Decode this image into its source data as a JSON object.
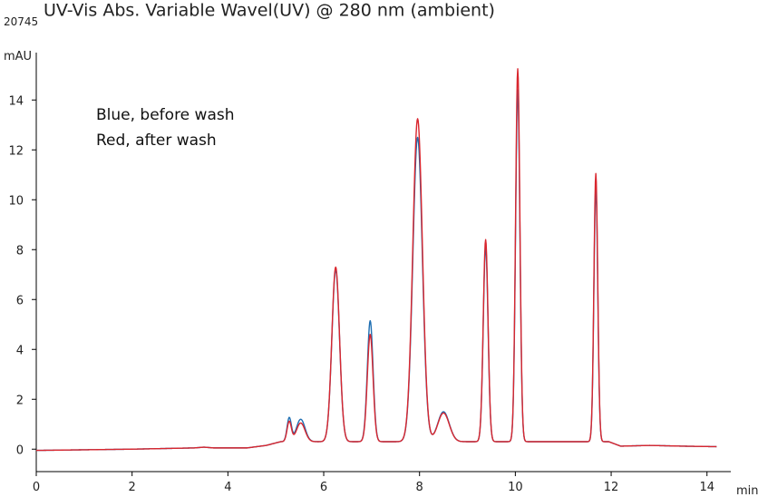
{
  "header": {
    "title": "UV-Vis Abs. Variable Wavel(UV) @ 280 nm (ambient)",
    "sample_id": "20745"
  },
  "chart_data": {
    "type": "line",
    "xlabel": "min",
    "ylabel": "mAU",
    "xlim": [
      0,
      14.8
    ],
    "ylim": [
      -0.9,
      15.9
    ],
    "xticks": [
      0,
      2,
      4,
      6,
      8,
      10,
      12,
      14
    ],
    "yticks": [
      0,
      2,
      4,
      6,
      8,
      10,
      12,
      14
    ],
    "grid": false,
    "legend": "none",
    "annotations": [
      "Blue, before wash",
      "Red, after wash"
    ],
    "baseline": [
      [
        0,
        -0.05
      ],
      [
        2,
        0.0
      ],
      [
        3.3,
        0.05
      ],
      [
        3.5,
        0.08
      ],
      [
        3.7,
        0.05
      ],
      [
        4.4,
        0.05
      ],
      [
        4.8,
        0.15
      ],
      [
        5.1,
        0.3
      ],
      [
        11.95,
        0.3
      ],
      [
        12.2,
        0.12
      ],
      [
        12.8,
        0.15
      ],
      [
        13.5,
        0.12
      ],
      [
        14.2,
        0.1
      ]
    ],
    "series": [
      {
        "color": "#1f6fb2",
        "peaks": [
          {
            "t": 5.28,
            "h": 0.95,
            "w": 0.045
          },
          {
            "t": 5.52,
            "h": 0.9,
            "w": 0.09
          },
          {
            "t": 6.25,
            "h": 6.9,
            "w": 0.08
          },
          {
            "t": 6.97,
            "h": 4.85,
            "w": 0.06
          },
          {
            "t": 7.96,
            "h": 12.2,
            "w": 0.1
          },
          {
            "t": 8.5,
            "h": 1.2,
            "w": 0.12
          },
          {
            "t": 9.38,
            "h": 7.8,
            "w": 0.05
          },
          {
            "t": 10.05,
            "h": 14.1,
            "w": 0.045
          },
          {
            "t": 11.68,
            "h": 10.2,
            "w": 0.04
          }
        ]
      },
      {
        "color": "#d9262e",
        "peaks": [
          {
            "t": 5.28,
            "h": 0.8,
            "w": 0.045
          },
          {
            "t": 5.52,
            "h": 0.75,
            "w": 0.09
          },
          {
            "t": 6.25,
            "h": 7.0,
            "w": 0.08
          },
          {
            "t": 6.97,
            "h": 4.3,
            "w": 0.06
          },
          {
            "t": 7.96,
            "h": 12.95,
            "w": 0.1
          },
          {
            "t": 8.5,
            "h": 1.15,
            "w": 0.12
          },
          {
            "t": 9.38,
            "h": 8.1,
            "w": 0.05
          },
          {
            "t": 10.05,
            "h": 14.95,
            "w": 0.045
          },
          {
            "t": 11.68,
            "h": 10.75,
            "w": 0.04
          }
        ]
      }
    ]
  }
}
